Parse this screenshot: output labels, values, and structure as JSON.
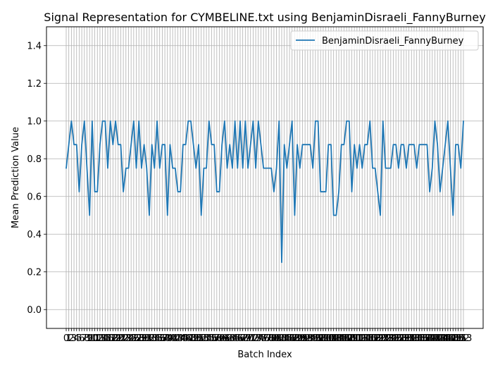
{
  "chart_data": {
    "type": "line",
    "title": "Signal Representation for CYMBELINE.txt using BenjaminDisraeli_FannyBurney",
    "xlabel": "Batch Index",
    "ylabel": "Mean Prediction Value",
    "ylim": [
      -0.1,
      1.5
    ],
    "yticks": [
      0.0,
      0.2,
      0.4,
      0.6,
      0.8,
      1.0,
      1.2,
      1.4
    ],
    "ytick_labels": [
      "0.0",
      "0.2",
      "0.4",
      "0.6",
      "0.8",
      "1.0",
      "1.2",
      "1.4"
    ],
    "grid": true,
    "legend_position": "top-right",
    "series": [
      {
        "name": "BenjaminDisraeli_FannyBurney",
        "color": "#1f77b4",
        "values": [
          0.75,
          0.875,
          1.0,
          0.875,
          0.875,
          0.625,
          0.875,
          1.0,
          0.75,
          0.5,
          1.0,
          0.625,
          0.625,
          0.875,
          1.0,
          1.0,
          0.75,
          1.0,
          0.875,
          1.0,
          0.875,
          0.875,
          0.625,
          0.75,
          0.75,
          0.875,
          1.0,
          0.75,
          1.0,
          0.75,
          0.875,
          0.75,
          0.5,
          0.875,
          0.75,
          1.0,
          0.75,
          0.875,
          0.875,
          0.5,
          0.875,
          0.75,
          0.75,
          0.625,
          0.625,
          0.875,
          0.875,
          1.0,
          1.0,
          0.875,
          0.75,
          0.875,
          0.5,
          0.75,
          0.75,
          1.0,
          0.875,
          0.875,
          0.625,
          0.625,
          0.875,
          1.0,
          0.75,
          0.875,
          0.75,
          1.0,
          0.75,
          1.0,
          0.75,
          1.0,
          0.75,
          0.875,
          1.0,
          0.75,
          1.0,
          0.875,
          0.75,
          0.75,
          0.75,
          0.75,
          0.625,
          0.75,
          1.0,
          0.25,
          0.875,
          0.75,
          0.875,
          1.0,
          0.5,
          0.875,
          0.75,
          0.875,
          0.875,
          0.875,
          0.875,
          0.75,
          1.0,
          1.0,
          0.625,
          0.625,
          0.625,
          0.875,
          0.875,
          0.5,
          0.5,
          0.625,
          0.875,
          0.875,
          1.0,
          1.0,
          0.625,
          0.875,
          0.75,
          0.875,
          0.75,
          0.875,
          0.875,
          1.0,
          0.75,
          0.75,
          0.625,
          0.5,
          1.0,
          0.75,
          0.75,
          0.75,
          0.875,
          0.875,
          0.75,
          0.875,
          0.875,
          0.75,
          0.875,
          0.875,
          0.875,
          0.75,
          0.875,
          0.875,
          0.875,
          0.875,
          0.625,
          0.75,
          1.0,
          0.875,
          0.625,
          0.75,
          0.875,
          1.0,
          0.75,
          0.5,
          0.875,
          0.875,
          0.75,
          1.0
        ]
      }
    ]
  }
}
